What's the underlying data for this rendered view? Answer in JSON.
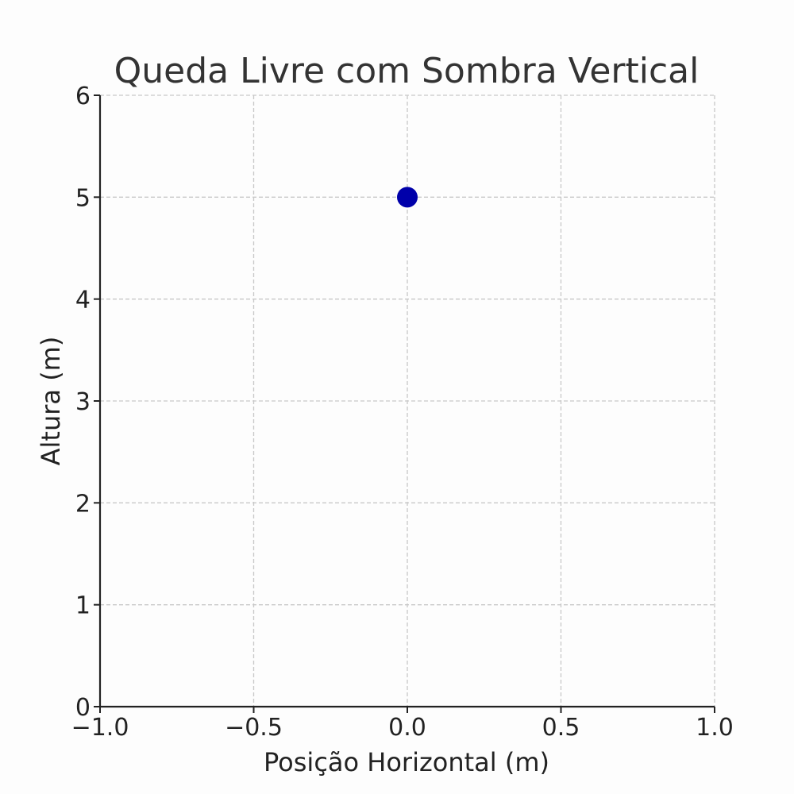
{
  "chart_data": {
    "type": "scatter",
    "title": "Queda Livre com Sombra Vertical",
    "xlabel": "Posição Horizontal (m)",
    "ylabel": "Altura (m)",
    "xlim": [
      -1.0,
      1.0
    ],
    "ylim": [
      0,
      6
    ],
    "xticks": [
      -1.0,
      -0.5,
      0.0,
      0.5,
      1.0
    ],
    "xtick_labels": [
      "−1.0",
      "−0.5",
      "0.0",
      "0.5",
      "1.0"
    ],
    "yticks": [
      0,
      1,
      2,
      3,
      4,
      5,
      6
    ],
    "ytick_labels": [
      "0",
      "1",
      "2",
      "3",
      "4",
      "5",
      "6"
    ],
    "grid": true,
    "series": [
      {
        "points": [
          {
            "x": 0.0,
            "y": 5.0
          }
        ],
        "color": "#0000aa"
      }
    ]
  }
}
